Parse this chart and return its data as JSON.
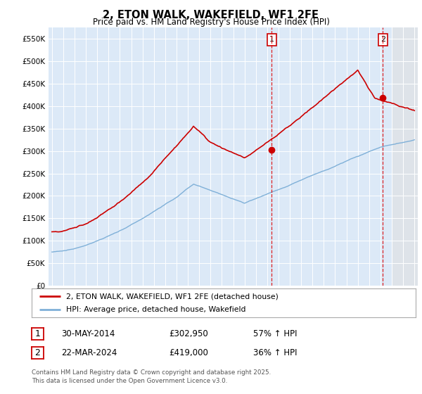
{
  "title": "2, ETON WALK, WAKEFIELD, WF1 2FE",
  "subtitle": "Price paid vs. HM Land Registry's House Price Index (HPI)",
  "background_color": "#dce9f7",
  "future_bg_color": "#e8e8e8",
  "red_line_color": "#cc0000",
  "blue_line_color": "#7fb0d8",
  "ylim": [
    0,
    575000
  ],
  "yticks": [
    0,
    50000,
    100000,
    150000,
    200000,
    250000,
    300000,
    350000,
    400000,
    450000,
    500000,
    550000
  ],
  "sale1_date": "30-MAY-2014",
  "sale1_price": 302950,
  "sale1_x": 2014.41,
  "sale1_label": "1",
  "sale1_hpi_change": "57% ↑ HPI",
  "sale2_date": "22-MAR-2024",
  "sale2_price": 419000,
  "sale2_x": 2024.22,
  "sale2_label": "2",
  "sale2_hpi_change": "36% ↑ HPI",
  "legend_label_red": "2, ETON WALK, WAKEFIELD, WF1 2FE (detached house)",
  "legend_label_blue": "HPI: Average price, detached house, Wakefield",
  "footnote": "Contains HM Land Registry data © Crown copyright and database right 2025.\nThis data is licensed under the Open Government Licence v3.0.",
  "xstart_year": 1995,
  "xend_year": 2027,
  "future_cutoff": 2025.0
}
